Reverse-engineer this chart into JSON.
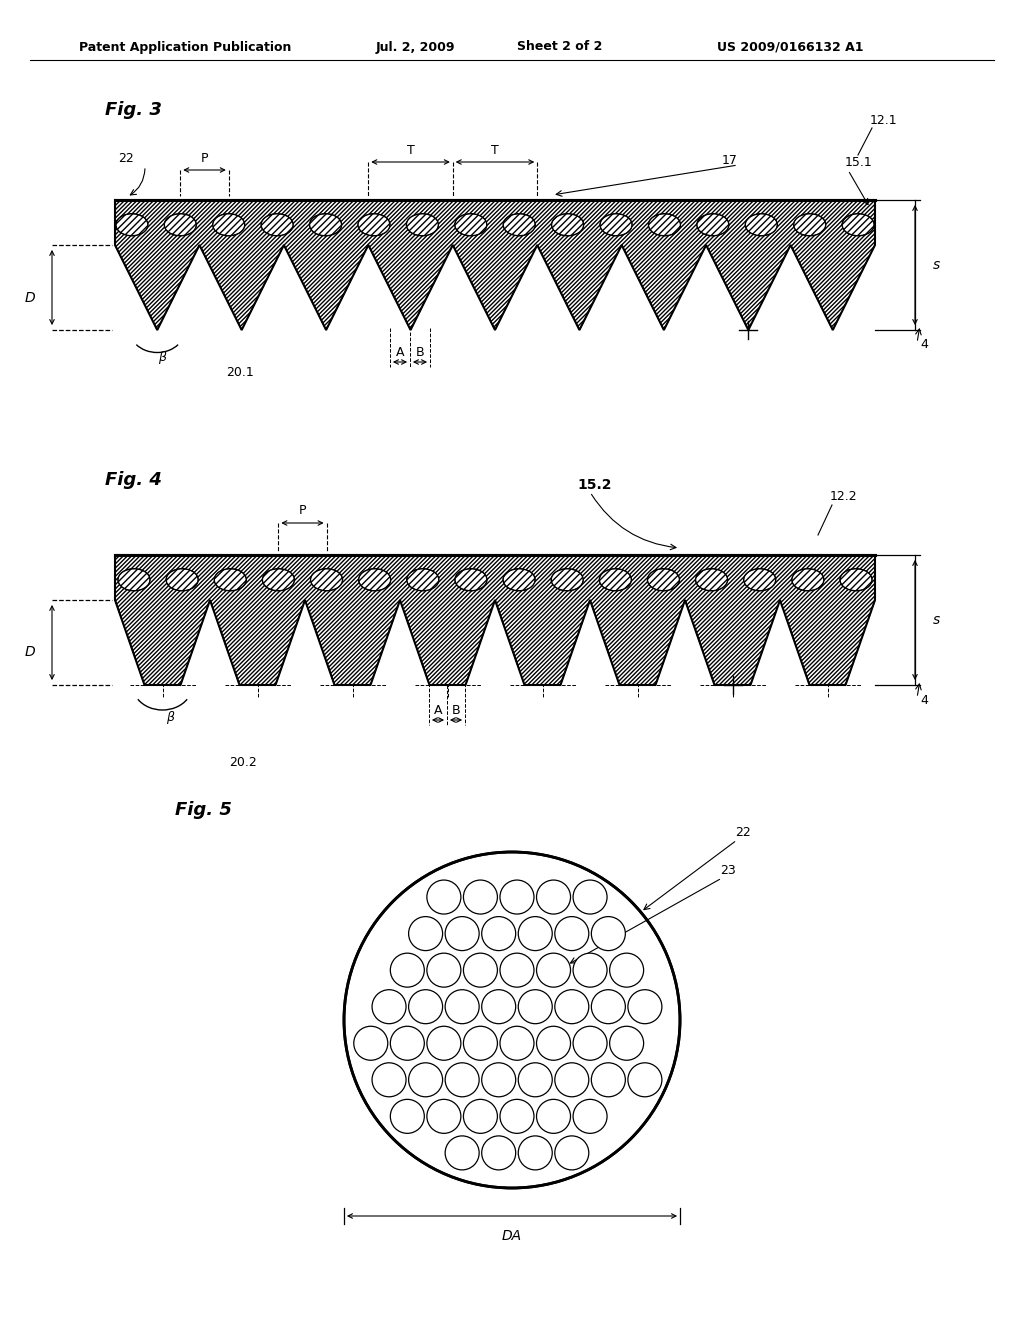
{
  "bg_color": "#ffffff",
  "line_color": "#000000",
  "header_text": "Patent Application Publication",
  "header_date": "Jul. 2, 2009",
  "header_sheet": "Sheet 2 of 2",
  "header_patent": "US 2009/0166132 A1",
  "fig3_label": "Fig. 3",
  "fig4_label": "Fig. 4",
  "fig5_label": "Fig. 5"
}
